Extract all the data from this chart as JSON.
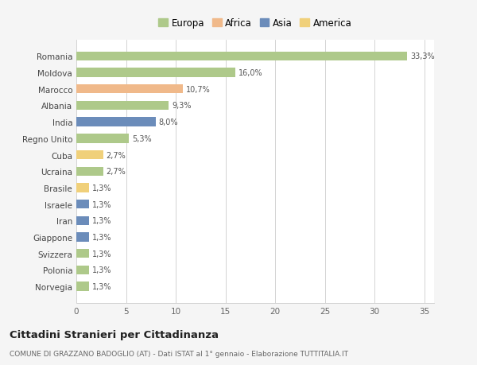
{
  "countries": [
    "Romania",
    "Moldova",
    "Marocco",
    "Albania",
    "India",
    "Regno Unito",
    "Cuba",
    "Ucraina",
    "Brasile",
    "Israele",
    "Iran",
    "Giappone",
    "Svizzera",
    "Polonia",
    "Norvegia"
  ],
  "values": [
    33.3,
    16.0,
    10.7,
    9.3,
    8.0,
    5.3,
    2.7,
    2.7,
    1.3,
    1.3,
    1.3,
    1.3,
    1.3,
    1.3,
    1.3
  ],
  "labels": [
    "33,3%",
    "16,0%",
    "10,7%",
    "9,3%",
    "8,0%",
    "5,3%",
    "2,7%",
    "2,7%",
    "1,3%",
    "1,3%",
    "1,3%",
    "1,3%",
    "1,3%",
    "1,3%",
    "1,3%"
  ],
  "continents": [
    "Europa",
    "Europa",
    "Africa",
    "Europa",
    "Asia",
    "Europa",
    "America",
    "Europa",
    "America",
    "Asia",
    "Asia",
    "Asia",
    "Europa",
    "Europa",
    "Europa"
  ],
  "colors": {
    "Europa": "#aec98a",
    "Africa": "#f0b98a",
    "Asia": "#6b8cba",
    "America": "#f0d07a"
  },
  "legend_order": [
    "Europa",
    "Africa",
    "Asia",
    "America"
  ],
  "title": "Cittadini Stranieri per Cittadinanza",
  "subtitle": "COMUNE DI GRAZZANO BADOGLIO (AT) - Dati ISTAT al 1° gennaio - Elaborazione TUTTITALIA.IT",
  "xlim": [
    0,
    36
  ],
  "xticks": [
    0,
    5,
    10,
    15,
    20,
    25,
    30,
    35
  ],
  "background_color": "#f5f5f5",
  "plot_bg_color": "#ffffff"
}
